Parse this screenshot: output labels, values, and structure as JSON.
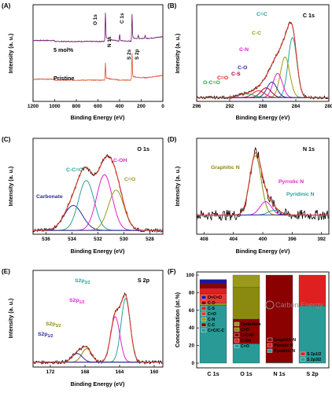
{
  "chart_data": [
    {
      "panel": "(A)",
      "type": "line",
      "xlabel": "Binding Energy (eV)",
      "ylabel": "Intensity (a. u.)",
      "xlim": [
        1200,
        0
      ],
      "xticks": [
        1200,
        1000,
        800,
        600,
        400,
        200,
        0
      ],
      "series": [
        {
          "name": "5 mol%",
          "color": "#7b2a7b",
          "baseline": 0.62,
          "peaks": [
            {
              "label": "O 1s",
              "x": 531,
              "h": 0.3
            },
            {
              "label": "N 1s",
              "x": 400,
              "h": 0.07
            },
            {
              "label": "C 1s",
              "x": 285,
              "h": 0.28
            },
            {
              "label": "S 2s",
              "x": 228,
              "h": 0.04
            },
            {
              "label": "S 2p",
              "x": 164,
              "h": 0.04
            }
          ]
        },
        {
          "name": "Pristine",
          "color": "#e06040",
          "baseline": 0.22,
          "peaks": [
            {
              "label": "O 1s",
              "x": 531,
              "h": 0.18
            },
            {
              "label": "C 1s",
              "x": 285,
              "h": 0.28
            }
          ]
        }
      ],
      "annotations": [
        "O 1s",
        "N 1s",
        "C 1s",
        "S 2s",
        "S 2p"
      ]
    },
    {
      "panel": "(B)",
      "type": "line",
      "title": "C 1s",
      "xlabel": "Binding Energy (eV)",
      "ylabel": "Intensity (a. u.)",
      "xlim": [
        296,
        280
      ],
      "xticks": [
        296,
        292,
        288,
        284,
        280
      ],
      "components": [
        {
          "name": "C=C",
          "center": 284.4,
          "height": 0.62,
          "width": 0.75,
          "color": "#2aa198"
        },
        {
          "name": "C-C",
          "center": 285.3,
          "height": 0.42,
          "width": 0.8,
          "color": "#9a9a1a"
        },
        {
          "name": "C-N",
          "center": 286.2,
          "height": 0.25,
          "width": 0.8,
          "color": "#e020d0"
        },
        {
          "name": "C-O",
          "center": 286.9,
          "height": 0.16,
          "width": 0.85,
          "color": "#2a2a9a"
        },
        {
          "name": "C-S",
          "center": 287.6,
          "height": 0.1,
          "width": 0.9,
          "color": "#a00030"
        },
        {
          "name": "C=O",
          "center": 288.5,
          "height": 0.07,
          "width": 1.0,
          "color": "#e02020"
        },
        {
          "name": "O-C=O",
          "center": 290.0,
          "height": 0.04,
          "width": 1.2,
          "color": "#22aa44"
        }
      ],
      "background": 0.04
    },
    {
      "panel": "(C)",
      "type": "line",
      "title": "O 1s",
      "xlabel": "Binding Energy (eV)",
      "ylabel": "Intensity (a. u.)",
      "xlim": [
        537,
        527
      ],
      "xticks": [
        536,
        534,
        532,
        530,
        528
      ],
      "components": [
        {
          "name": "Carbonate",
          "center": 533.9,
          "height": 0.26,
          "width": 1.0,
          "color": "#2a2a9a"
        },
        {
          "name": "C-C=O",
          "center": 532.9,
          "height": 0.52,
          "width": 0.85,
          "color": "#2aa198"
        },
        {
          "name": "C-OH",
          "center": 531.5,
          "height": 0.58,
          "width": 0.85,
          "color": "#e020d0"
        },
        {
          "name": "C=O",
          "center": 530.6,
          "height": 0.42,
          "width": 0.85,
          "color": "#9a9a1a"
        }
      ],
      "background": 0.04
    },
    {
      "panel": "(D)",
      "type": "line",
      "title": "N 1s",
      "xlabel": "Binding Energy (eV)",
      "ylabel": "Intensity (a. u.)",
      "xlim": [
        409,
        391
      ],
      "xticks": [
        408,
        404,
        400,
        396,
        392
      ],
      "components": [
        {
          "name": "Graphitic N",
          "center": 401.0,
          "height": 0.62,
          "width": 1.1,
          "color": "#8a8a10"
        },
        {
          "name": "Pyrrolic N",
          "center": 399.6,
          "height": 0.14,
          "width": 1.1,
          "color": "#e020d0"
        },
        {
          "name": "Pyridinic N",
          "center": 398.4,
          "height": 0.05,
          "width": 1.2,
          "color": "#2aa198"
        }
      ],
      "background": 0.2
    },
    {
      "panel": "(E)",
      "type": "line",
      "title": "S 2p",
      "xlabel": "Binding Energy (eV)",
      "ylabel": "Intensity (a. u.)",
      "xlim": [
        174,
        159
      ],
      "xticks": [
        172,
        168,
        164,
        160
      ],
      "components": [
        {
          "name": "S2p3/2",
          "center": 163.3,
          "height": 0.66,
          "width": 0.75,
          "color": "#2aa198"
        },
        {
          "name": "S2p1/2",
          "center": 164.5,
          "height": 0.47,
          "width": 0.75,
          "color": "#e020d0"
        },
        {
          "name": "S2p3/2",
          "center": 167.8,
          "height": 0.14,
          "width": 0.8,
          "color": "#8a8a10"
        },
        {
          "name": "S2p1/2",
          "center": 168.9,
          "height": 0.09,
          "width": 0.85,
          "color": "#2a2a9a"
        }
      ],
      "background": 0.05
    },
    {
      "panel": "(F)",
      "type": "bar",
      "stacked": true,
      "categories": [
        "C 1s",
        "O 1s",
        "N 1s",
        "S 2p"
      ],
      "ylabel": "Concentration (at.%)",
      "ylim": [
        0,
        100
      ],
      "yticks": [
        0,
        20,
        40,
        60,
        80,
        100
      ],
      "series": [
        {
          "name": "C=C",
          "values": [
            66,
            0,
            0,
            0
          ],
          "color": "#2a9a96"
        },
        {
          "name": "C-C",
          "values": [
            2,
            0,
            0,
            0
          ],
          "color": "#9a9a1a"
        },
        {
          "name": "C-N",
          "values": [
            11,
            0,
            0,
            0
          ],
          "color": "#e53935"
        },
        {
          "name": "C-S",
          "values": [
            6,
            0,
            0,
            0
          ],
          "color": "#e02020"
        },
        {
          "name": "C-O",
          "values": [
            5,
            0,
            0,
            0
          ],
          "color": "#8b0000"
        },
        {
          "name": "O=C-O",
          "values": [
            5,
            0,
            0,
            0
          ],
          "color": "#1a1a9a"
        },
        {
          "name": "C-OH",
          "values": [
            0,
            22,
            0,
            0
          ],
          "color": "#2a9a96"
        },
        {
          "name": "C-C=O",
          "values": [
            0,
            28,
            0,
            0
          ],
          "color": "#8b0000"
        },
        {
          "name": "C=O",
          "values": [
            0,
            36,
            0,
            0
          ],
          "color": "#8a8a10"
        },
        {
          "name": "Carbonate",
          "values": [
            0,
            14,
            0,
            0
          ],
          "color": "#9a9a1a"
        },
        {
          "name": "Pyridinic N",
          "values": [
            0,
            0,
            0.5,
            0
          ],
          "color": "#2a9a96"
        },
        {
          "name": "Pyrrolic N",
          "values": [
            0,
            0,
            0.5,
            0
          ],
          "color": "#e02020"
        },
        {
          "name": "Graphitic N",
          "values": [
            0,
            0,
            99,
            0
          ],
          "color": "#8b0000"
        },
        {
          "name": "S 2p3/2",
          "values": [
            0,
            0,
            0,
            65
          ],
          "color": "#2a9a96"
        },
        {
          "name": "S 2p1/2",
          "values": [
            0,
            0,
            0,
            35
          ],
          "color": "#e02020"
        }
      ],
      "legends": [
        [
          "O=C=O",
          "C-O",
          "C-S",
          "C=O",
          "C-N",
          "C-C",
          "C=C/C-C"
        ],
        [
          "Carbonate",
          "C=O",
          "O-C=O",
          "C-OH",
          "C=O"
        ],
        [
          "Graphitic N",
          "Pyrrolic N",
          "Pyridinic N"
        ],
        [
          "S 2p1/2",
          "S 2p3/2"
        ]
      ]
    }
  ],
  "labels": {
    "A": {
      "panel": "(A)",
      "ylabel": "Intensity (a. u.)",
      "xlabel": "Binding Energy (eV)",
      "s1": "5 mol%",
      "s2": "Pristine",
      "o1s": "O 1s",
      "n1s": "N 1s",
      "c1s": "C 1s",
      "s2s": "S 2s",
      "s2p": "S 2p",
      "xt": [
        "1200",
        "1000",
        "800",
        "600",
        "400",
        "200",
        "0"
      ]
    },
    "B": {
      "panel": "(B)",
      "title": "C 1s",
      "ylabel": "Intensity (a. u.)",
      "xlabel": "Binding Energy (eV)",
      "xt": [
        "296",
        "292",
        "288",
        "284",
        "280"
      ],
      "ann": [
        "C=C",
        "C-C",
        "C-N",
        "C-O",
        "C-S",
        "C=O",
        "O-C=O"
      ]
    },
    "C": {
      "panel": "(C)",
      "title": "O 1s",
      "ylabel": "Intensity (a. u.)",
      "xlabel": "Binding Energy (eV)",
      "xt": [
        "536",
        "534",
        "532",
        "530",
        "528"
      ],
      "ann": [
        "C-C=O",
        "C-OH",
        "C=O",
        "Carbonate"
      ]
    },
    "D": {
      "panel": "(D)",
      "title": "N 1s",
      "ylabel": "Intensity (a. u.)",
      "xlabel": "Binding Energy (eV)",
      "xt": [
        "408",
        "404",
        "400",
        "396",
        "392"
      ],
      "ann": [
        "Graphitic N",
        "Pyrrolic N",
        "Pyridinic N"
      ]
    },
    "E": {
      "panel": "(E)",
      "title": "S 2p",
      "ylabel": "Intensity (a. u.)",
      "xlabel": "Binding Energy (eV)",
      "xt": [
        "172",
        "168",
        "164",
        "160"
      ]
    },
    "F": {
      "panel": "(F)",
      "ylabel": "Concentration (at.%)",
      "yt": [
        "0",
        "20",
        "40",
        "60",
        "80",
        "100"
      ],
      "cats": [
        "C 1s",
        "O 1s",
        "N 1s",
        "S 2p"
      ]
    }
  },
  "watermark": "Carbon Energy",
  "colors": {
    "five_mol": "#7b2a7b",
    "pristine": "#e06040",
    "envelope": "#e03a2a",
    "raw": "#000000"
  }
}
